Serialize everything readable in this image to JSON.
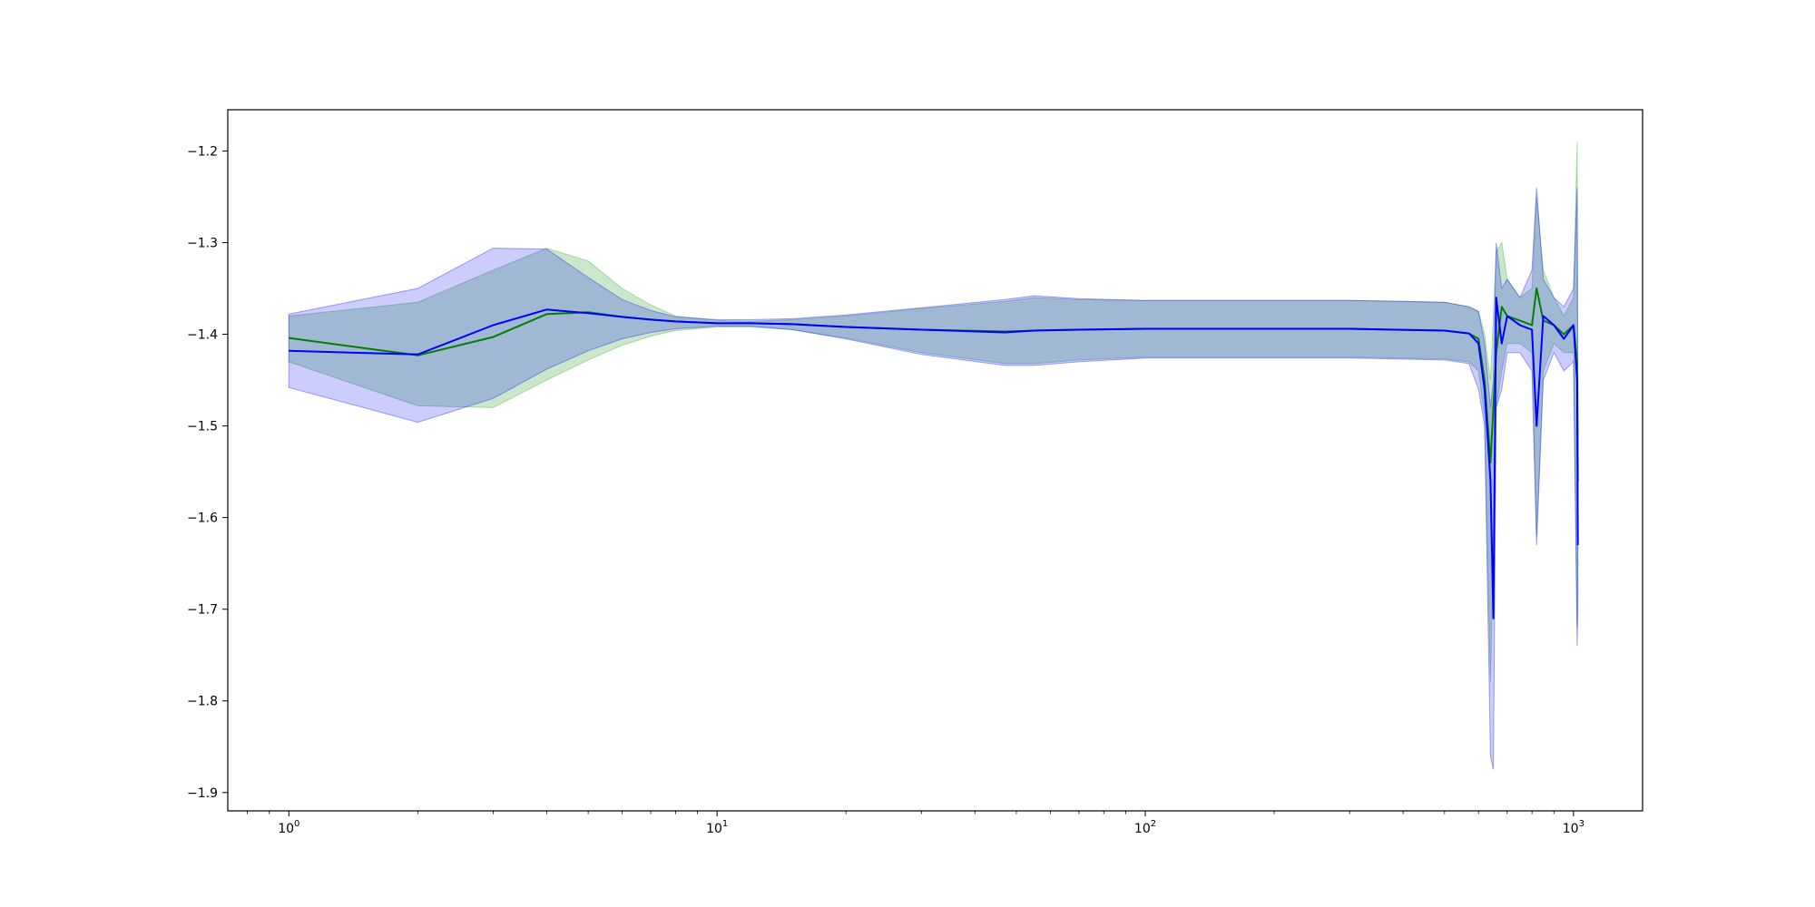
{
  "chart_data": {
    "type": "line",
    "title": "",
    "xlabel": "",
    "ylabel": "",
    "xscale": "log",
    "xlim": [
      0.72,
      1450
    ],
    "ylim": [
      -1.92,
      -1.155
    ],
    "x_ticks": [
      {
        "value": 1,
        "base": "10",
        "exp": "0"
      },
      {
        "value": 10,
        "base": "10",
        "exp": "1"
      },
      {
        "value": 100,
        "base": "10",
        "exp": "2"
      },
      {
        "value": 1000,
        "base": "10",
        "exp": "3"
      }
    ],
    "y_ticks": [
      {
        "value": -1.2,
        "label": "−1.2"
      },
      {
        "value": -1.3,
        "label": "−1.3"
      },
      {
        "value": -1.4,
        "label": "−1.4"
      },
      {
        "value": -1.5,
        "label": "−1.5"
      },
      {
        "value": -1.6,
        "label": "−1.6"
      },
      {
        "value": -1.7,
        "label": "−1.7"
      },
      {
        "value": -1.8,
        "label": "−1.8"
      },
      {
        "value": -1.9,
        "label": "−1.9"
      }
    ],
    "grid": false,
    "legend": "none",
    "series": [
      {
        "color": "#008000",
        "band_color": "#2ca02c",
        "band_opacity": 0.25,
        "x": [
          1,
          2,
          3,
          4,
          5,
          6,
          7,
          8,
          10,
          12,
          15,
          20,
          30,
          47,
          55,
          70,
          100,
          200,
          300,
          500,
          570,
          600,
          620,
          640,
          660,
          680,
          700,
          750,
          800,
          820,
          850,
          900,
          950,
          1000,
          1020,
          1024
        ],
        "y": [
          -1.404,
          -1.423,
          -1.403,
          -1.378,
          -1.376,
          -1.381,
          -1.384,
          -1.386,
          -1.388,
          -1.388,
          -1.389,
          -1.392,
          -1.395,
          -1.397,
          -1.396,
          -1.395,
          -1.394,
          -1.394,
          -1.394,
          -1.396,
          -1.399,
          -1.405,
          -1.45,
          -1.54,
          -1.42,
          -1.37,
          -1.38,
          -1.385,
          -1.39,
          -1.35,
          -1.385,
          -1.39,
          -1.4,
          -1.39,
          -1.43,
          -1.56
        ],
        "upper": [
          -1.38,
          -1.365,
          -1.33,
          -1.306,
          -1.32,
          -1.35,
          -1.368,
          -1.38,
          -1.385,
          -1.386,
          -1.384,
          -1.38,
          -1.372,
          -1.364,
          -1.36,
          -1.362,
          -1.363,
          -1.363,
          -1.363,
          -1.365,
          -1.37,
          -1.375,
          -1.4,
          -1.45,
          -1.31,
          -1.3,
          -1.34,
          -1.36,
          -1.35,
          -1.25,
          -1.33,
          -1.36,
          -1.38,
          -1.36,
          -1.19,
          -1.45
        ],
        "lower": [
          -1.43,
          -1.478,
          -1.48,
          -1.45,
          -1.428,
          -1.412,
          -1.402,
          -1.396,
          -1.392,
          -1.392,
          -1.395,
          -1.404,
          -1.42,
          -1.432,
          -1.432,
          -1.428,
          -1.425,
          -1.425,
          -1.425,
          -1.427,
          -1.43,
          -1.44,
          -1.49,
          -1.78,
          -1.48,
          -1.44,
          -1.41,
          -1.41,
          -1.42,
          -1.62,
          -1.44,
          -1.41,
          -1.42,
          -1.42,
          -1.72,
          -1.68
        ]
      },
      {
        "color": "#0000ff",
        "band_color": "#0000ff",
        "band_opacity": 0.2,
        "x": [
          1,
          2,
          3,
          4,
          5,
          6,
          7,
          8,
          10,
          12,
          15,
          20,
          30,
          47,
          55,
          70,
          100,
          200,
          300,
          500,
          570,
          600,
          620,
          640,
          650,
          660,
          680,
          700,
          750,
          800,
          820,
          850,
          900,
          950,
          1000,
          1020,
          1024
        ],
        "y": [
          -1.418,
          -1.422,
          -1.39,
          -1.373,
          -1.377,
          -1.381,
          -1.384,
          -1.386,
          -1.388,
          -1.388,
          -1.389,
          -1.392,
          -1.395,
          -1.398,
          -1.396,
          -1.395,
          -1.394,
          -1.394,
          -1.394,
          -1.396,
          -1.399,
          -1.41,
          -1.46,
          -1.56,
          -1.71,
          -1.36,
          -1.41,
          -1.38,
          -1.39,
          -1.395,
          -1.5,
          -1.38,
          -1.39,
          -1.405,
          -1.39,
          -1.45,
          -1.63
        ],
        "upper": [
          -1.378,
          -1.35,
          -1.306,
          -1.307,
          -1.338,
          -1.362,
          -1.374,
          -1.381,
          -1.384,
          -1.384,
          -1.383,
          -1.379,
          -1.371,
          -1.362,
          -1.358,
          -1.361,
          -1.363,
          -1.363,
          -1.363,
          -1.365,
          -1.37,
          -1.375,
          -1.41,
          -1.48,
          -1.45,
          -1.3,
          -1.35,
          -1.34,
          -1.36,
          -1.33,
          -1.24,
          -1.34,
          -1.36,
          -1.37,
          -1.35,
          -1.24,
          -1.5
        ],
        "lower": [
          -1.458,
          -1.496,
          -1.47,
          -1.438,
          -1.418,
          -1.405,
          -1.398,
          -1.394,
          -1.391,
          -1.391,
          -1.395,
          -1.405,
          -1.422,
          -1.434,
          -1.434,
          -1.43,
          -1.426,
          -1.426,
          -1.426,
          -1.428,
          -1.432,
          -1.46,
          -1.5,
          -1.86,
          -1.875,
          -1.48,
          -1.46,
          -1.42,
          -1.42,
          -1.44,
          -1.63,
          -1.45,
          -1.42,
          -1.44,
          -1.43,
          -1.74,
          -1.7
        ]
      }
    ]
  }
}
